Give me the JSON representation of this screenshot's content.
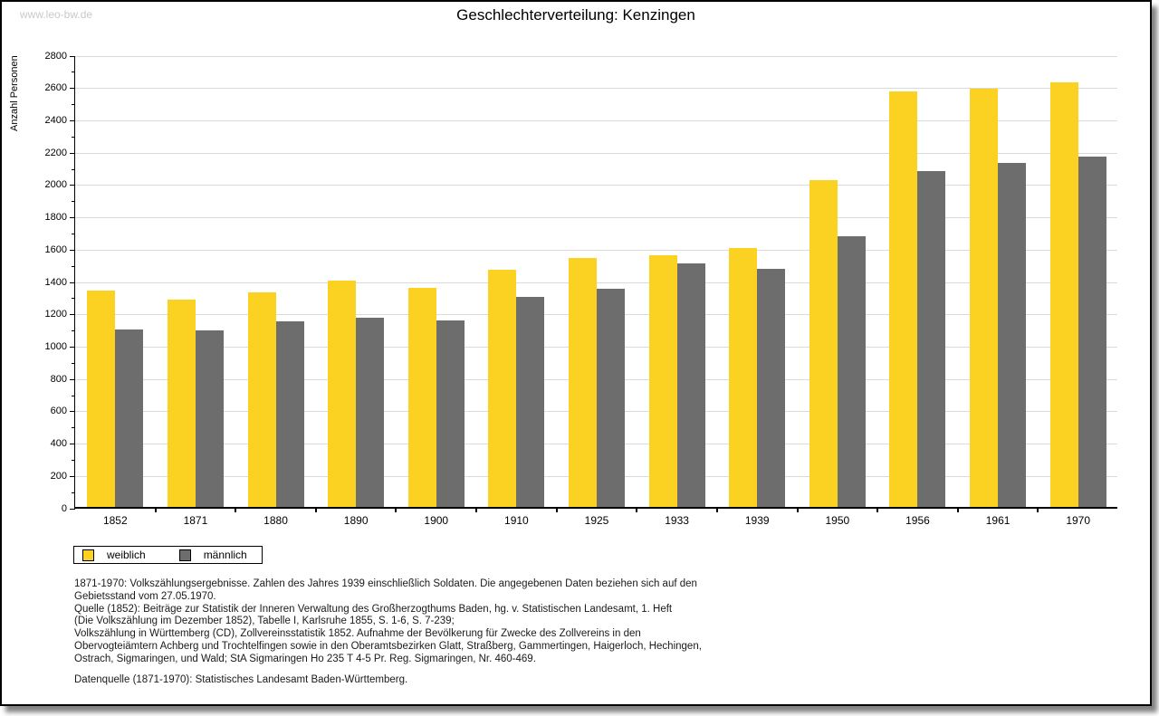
{
  "watermark": "www.leo-bw.de",
  "title": "Geschlechterverteilung: Kenzingen",
  "chart_data": {
    "type": "bar",
    "title": "Geschlechterverteilung: Kenzingen",
    "ylabel": "Anzahl Personen",
    "xlabel": "",
    "ylim": [
      0,
      2800
    ],
    "ytick_step": 200,
    "minor_tick_step": 100,
    "grid": true,
    "legend_position": "bottom-left",
    "categories": [
      "1852",
      "1871",
      "1880",
      "1890",
      "1900",
      "1910",
      "1925",
      "1933",
      "1939",
      "1950",
      "1956",
      "1961",
      "1970"
    ],
    "series": [
      {
        "name": "weiblich",
        "color": "#FBD122",
        "values": [
          1340,
          1285,
          1325,
          1400,
          1355,
          1470,
          1540,
          1555,
          1600,
          2020,
          2570,
          2585,
          2625
        ]
      },
      {
        "name": "männlich",
        "color": "#6D6D6D",
        "values": [
          1100,
          1090,
          1150,
          1170,
          1155,
          1300,
          1350,
          1505,
          1475,
          1675,
          2080,
          2130,
          2165
        ]
      }
    ]
  },
  "footnotes": {
    "lines": [
      "1871-1970: Volkszählungsergebnisse. Zahlen des Jahres 1939 einschließlich Soldaten. Die angegebenen Daten beziehen sich auf den",
      "Gebietsstand vom 27.05.1970.",
      "Quelle (1852): Beiträge zur Statistik der Inneren Verwaltung des Großherzogthums Baden, hg. v. Statistischen Landesamt, 1. Heft",
      "(Die Volkszählung im Dezember 1852), Tabelle I, Karlsruhe 1855, S. 1-6, S. 7-239;",
      "Volkszählung in Württemberg (CD), Zollvereinsstatistik 1852. Aufnahme der Bevölkerung für Zwecke des Zollvereins in den",
      "Obervogteiämtern Achberg und Trochtelfingen sowie in den Oberamtsbezirken Glatt, Straßberg, Gammertingen, Haigerloch, Hechingen,",
      "Ostrach, Sigmaringen, und Wald; StA Sigmaringen Ho 235 T 4-5 Pr. Reg. Sigmaringen, Nr. 460-469."
    ],
    "datasource": "Datenquelle (1871-1970): Statistisches Landesamt Baden-Württemberg."
  }
}
